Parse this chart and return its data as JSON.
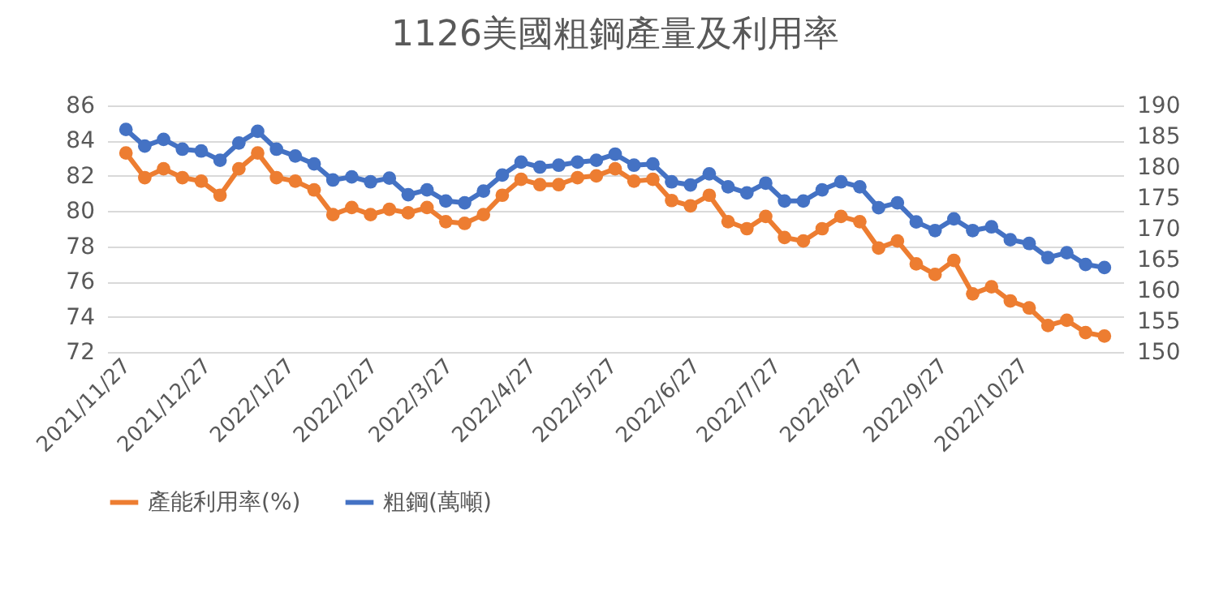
{
  "chart_data": {
    "type": "line",
    "title": "1126美國粗鋼產量及利用率",
    "x": [
      "2021-11-27",
      "2021-12-04",
      "2021-12-11",
      "2021-12-18",
      "2021-12-25",
      "2022-01-01",
      "2022-01-08",
      "2022-01-15",
      "2022-01-22",
      "2022-01-29",
      "2022-02-05",
      "2022-02-12",
      "2022-02-19",
      "2022-02-26",
      "2022-03-05",
      "2022-03-12",
      "2022-03-19",
      "2022-03-26",
      "2022-04-02",
      "2022-04-09",
      "2022-04-16",
      "2022-04-23",
      "2022-04-30",
      "2022-05-07",
      "2022-05-14",
      "2022-05-21",
      "2022-05-28",
      "2022-06-04",
      "2022-06-11",
      "2022-06-18",
      "2022-06-25",
      "2022-07-02",
      "2022-07-09",
      "2022-07-16",
      "2022-07-23",
      "2022-07-30",
      "2022-08-06",
      "2022-08-13",
      "2022-08-20",
      "2022-08-27",
      "2022-09-03",
      "2022-09-10",
      "2022-09-17",
      "2022-09-24",
      "2022-10-01",
      "2022-10-08",
      "2022-10-15",
      "2022-10-22",
      "2022-10-29",
      "2022-11-05",
      "2022-11-12",
      "2022-11-19",
      "2022-11-26"
    ],
    "series": [
      {
        "name": "產能利用率(%)",
        "color": "#ed7d31",
        "values": [
          83.3,
          81.9,
          82.4,
          81.9,
          81.7,
          80.9,
          82.4,
          83.3,
          81.9,
          81.7,
          81.2,
          79.8,
          80.2,
          79.8,
          80.1,
          79.9,
          80.2,
          79.4,
          79.3,
          79.8,
          80.9,
          81.8,
          81.5,
          81.5,
          81.9,
          82.0,
          82.4,
          81.7,
          81.8,
          80.6,
          80.3,
          80.9,
          79.4,
          79.0,
          79.7,
          78.5,
          78.3,
          79.0,
          79.7,
          79.4,
          77.9,
          78.3,
          77.0,
          76.4,
          77.2,
          75.3,
          75.7,
          74.9,
          74.5,
          73.5,
          73.8,
          73.1,
          72.9
        ]
      },
      {
        "name": "粗鋼(萬噸)",
        "color": "#4472c4",
        "axis": "y2",
        "values": [
          186.1,
          183.4,
          184.5,
          182.9,
          182.6,
          181.1,
          183.9,
          185.8,
          182.9,
          181.8,
          180.5,
          177.9,
          178.4,
          177.6,
          178.2,
          175.5,
          176.3,
          174.5,
          174.2,
          176.1,
          178.7,
          180.8,
          180.0,
          180.3,
          180.8,
          181.1,
          182.1,
          180.3,
          180.5,
          177.6,
          177.1,
          178.9,
          176.8,
          175.8,
          177.4,
          174.5,
          174.5,
          176.3,
          177.6,
          176.8,
          173.4,
          174.2,
          171.1,
          169.7,
          171.6,
          169.7,
          170.3,
          168.2,
          167.6,
          165.3,
          166.1,
          164.2,
          163.7
        ]
      }
    ],
    "xlim": [
      "2021-11-20",
      "2022-12-03"
    ],
    "xticks": [
      {
        "value": "2021-11-27",
        "label": "2021/11/27"
      },
      {
        "value": "2021-12-27",
        "label": "2021/12/27"
      },
      {
        "value": "2022-01-27",
        "label": "2022/1/27"
      },
      {
        "value": "2022-02-27",
        "label": "2022/2/27"
      },
      {
        "value": "2022-03-27",
        "label": "2022/3/27"
      },
      {
        "value": "2022-04-27",
        "label": "2022/4/27"
      },
      {
        "value": "2022-05-27",
        "label": "2022/5/27"
      },
      {
        "value": "2022-06-27",
        "label": "2022/6/27"
      },
      {
        "value": "2022-07-27",
        "label": "2022/7/27"
      },
      {
        "value": "2022-08-27",
        "label": "2022/8/27"
      },
      {
        "value": "2022-09-27",
        "label": "2022/9/27"
      },
      {
        "value": "2022-10-27",
        "label": "2022/10/27"
      }
    ],
    "ylim": [
      72,
      86
    ],
    "yticks": [
      72,
      74,
      76,
      78,
      80,
      82,
      84,
      86
    ],
    "y2lim": [
      150,
      190
    ],
    "y2ticks": [
      150,
      155,
      160,
      165,
      170,
      175,
      180,
      185,
      190
    ],
    "grid": "y",
    "legend": "bottom",
    "marker": "circle",
    "line_style": "solid"
  }
}
